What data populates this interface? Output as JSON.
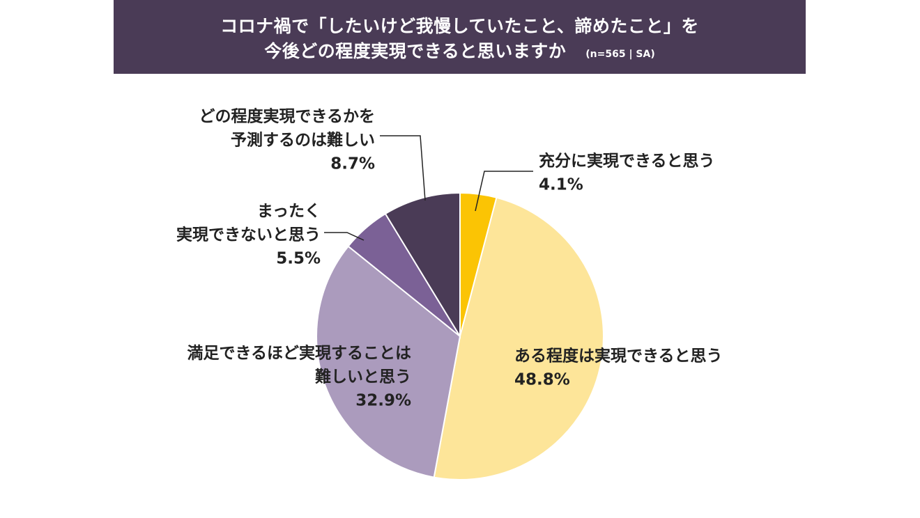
{
  "header": {
    "title_line1": "コロナ禍で「したいけど我慢していたこと、諦めたこと」を",
    "title_line2": "今後どの程度実現できると思いますか",
    "note": "(n=565 | SA)"
  },
  "chart_data": {
    "type": "pie",
    "title": "コロナ禍で「したいけど我慢していたこと、諦めたこと」を 今後どの程度実現できると思いますか",
    "subtitle": "(n=565 | SA)",
    "unit": "%",
    "slices": [
      {
        "label_lines": [
          "充分に実現できると思う"
        ],
        "value": 4.1,
        "value_label": "4.1%",
        "color": "#fbc404"
      },
      {
        "label_lines": [
          "ある程度は実現できると思う"
        ],
        "value": 48.8,
        "value_label": "48.8%",
        "color": "#fde599"
      },
      {
        "label_lines": [
          "満足できるほど実現することは",
          "難しいと思う"
        ],
        "value": 32.9,
        "value_label": "32.9%",
        "color": "#ab9bbd"
      },
      {
        "label_lines": [
          "まったく",
          "実現できないと思う"
        ],
        "value": 5.5,
        "value_label": "5.5%",
        "color": "#7b6196"
      },
      {
        "label_lines": [
          "どの程度実現できるかを",
          "予測するのは難しい"
        ],
        "value": 8.7,
        "value_label": "8.7%",
        "color": "#4a3b56"
      }
    ]
  }
}
